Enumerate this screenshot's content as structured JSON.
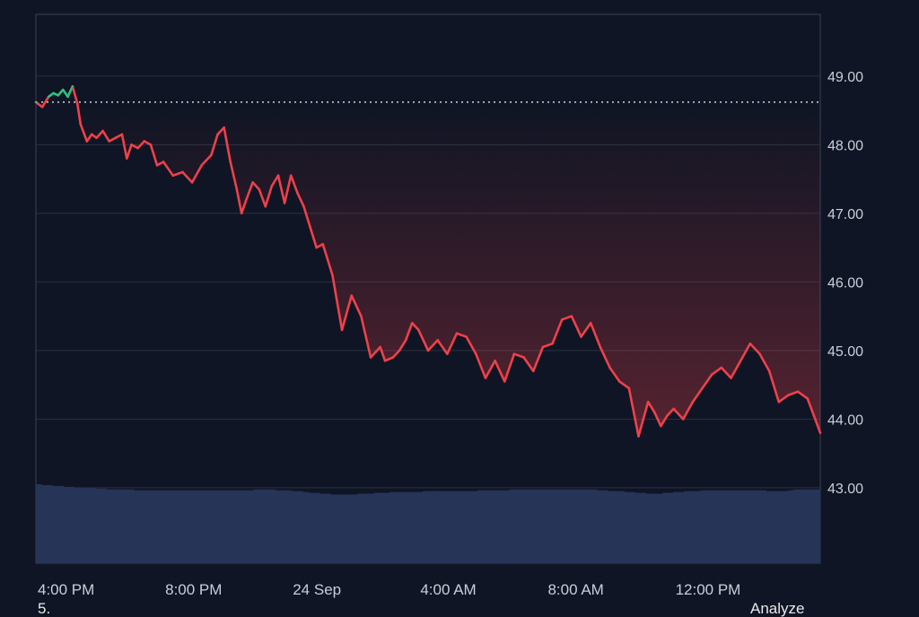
{
  "chart_data": {
    "type": "line",
    "title": "",
    "xlabel": "",
    "ylabel": "",
    "reference_price": 48.62,
    "ylim": [
      41.9,
      49.9
    ],
    "y_ticks": [
      "49.00",
      "48.00",
      "47.00",
      "46.00",
      "45.00",
      "44.00",
      "43.00"
    ],
    "x_ticks": [
      "4:00 PM",
      "8:00 PM",
      "24 Sep",
      "4:00 AM",
      "8:00 AM",
      "12:00 PM"
    ],
    "x_tick_hours": [
      0,
      4,
      8,
      12,
      16,
      20
    ],
    "x_range_hours": [
      0,
      24.6
    ],
    "grid": true,
    "colors": {
      "up": "#2ec27e",
      "down": "#f0404a",
      "volume": "#263458",
      "grid": "#2a3140",
      "reference": "#cfd3da"
    },
    "series": [
      {
        "x": [
          0,
          0.2,
          0.4,
          0.55,
          0.7,
          0.85,
          1.0,
          1.15,
          1.3,
          1.4,
          1.6,
          1.75,
          1.9,
          2.1,
          2.3,
          2.5,
          2.7,
          2.85,
          3.0,
          3.2,
          3.4,
          3.6,
          3.8,
          4.0,
          4.3,
          4.6,
          4.9,
          5.2,
          5.5,
          5.7,
          5.9,
          6.1,
          6.3,
          6.45,
          6.6,
          6.8,
          7.0,
          7.2,
          7.4,
          7.6,
          7.8,
          8.0,
          8.2,
          8.4,
          8.6,
          8.8,
          9.0,
          9.3,
          9.6,
          9.9,
          10.2,
          10.5,
          10.8,
          10.95,
          11.2,
          11.4,
          11.6,
          11.8,
          12.0,
          12.3,
          12.6,
          12.9,
          13.2,
          13.5,
          13.8,
          14.1,
          14.4,
          14.7,
          15.0,
          15.3,
          15.6,
          15.9,
          16.2,
          16.5,
          16.8,
          17.1,
          17.4,
          17.7,
          18.0,
          18.3,
          18.6,
          18.9,
          19.2,
          19.4,
          19.6,
          19.8,
          20.0,
          20.3,
          20.6,
          20.9,
          21.2,
          21.5,
          21.8,
          22.1,
          22.4,
          22.7,
          23.0,
          23.3,
          23.6,
          23.9,
          24.2,
          24.4,
          24.6
        ],
        "values": [
          48.62,
          48.55,
          48.7,
          48.75,
          48.72,
          48.8,
          48.7,
          48.85,
          48.6,
          48.3,
          48.05,
          48.15,
          48.1,
          48.2,
          48.05,
          48.1,
          48.15,
          47.8,
          48.0,
          47.95,
          48.05,
          48.0,
          47.7,
          47.75,
          47.55,
          47.6,
          47.45,
          47.7,
          47.85,
          48.15,
          48.25,
          47.75,
          47.35,
          47.0,
          47.2,
          47.45,
          47.35,
          47.1,
          47.4,
          47.55,
          47.15,
          47.55,
          47.3,
          47.1,
          46.8,
          46.5,
          46.55,
          46.1,
          45.3,
          45.8,
          45.5,
          44.9,
          45.05,
          44.85,
          44.9,
          45.0,
          45.15,
          45.4,
          45.3,
          45.0,
          45.15,
          44.95,
          45.25,
          45.2,
          44.95,
          44.6,
          44.85,
          44.55,
          44.95,
          44.9,
          44.7,
          45.05,
          45.1,
          45.45,
          45.5,
          45.2,
          45.4,
          45.05,
          44.75,
          44.55,
          44.45,
          43.75,
          44.25,
          44.1,
          43.9,
          44.05,
          44.15,
          44.0,
          44.25,
          44.45,
          44.65,
          44.75,
          44.6,
          44.85,
          45.1,
          44.95,
          44.7,
          44.25,
          44.35,
          44.4,
          44.3,
          44.05,
          43.8
        ]
      }
    ],
    "volume": [
      0.92,
      0.91,
      0.91,
      0.9,
      0.9,
      0.89,
      0.89,
      0.88,
      0.88,
      0.88,
      0.88,
      0.87,
      0.87,
      0.86,
      0.86,
      0.86,
      0.86,
      0.86,
      0.85,
      0.85,
      0.85,
      0.85,
      0.85,
      0.85,
      0.85,
      0.85,
      0.85,
      0.85,
      0.85,
      0.85,
      0.85,
      0.85,
      0.85,
      0.85,
      0.85,
      0.85,
      0.85,
      0.85,
      0.85,
      0.85,
      0.86,
      0.86,
      0.86,
      0.86,
      0.85,
      0.85,
      0.85,
      0.84,
      0.84,
      0.83,
      0.82,
      0.82,
      0.81,
      0.81,
      0.8,
      0.8,
      0.8,
      0.8,
      0.8,
      0.81,
      0.81,
      0.81,
      0.82,
      0.82,
      0.82,
      0.83,
      0.83,
      0.83,
      0.83,
      0.83,
      0.83,
      0.84,
      0.84,
      0.84,
      0.84,
      0.84,
      0.84,
      0.84,
      0.84,
      0.84,
      0.84,
      0.85,
      0.85,
      0.85,
      0.85,
      0.85,
      0.85,
      0.86,
      0.86,
      0.86,
      0.86,
      0.86,
      0.86,
      0.86,
      0.86,
      0.86,
      0.86,
      0.86,
      0.86,
      0.86,
      0.86,
      0.86,
      0.86,
      0.85,
      0.85,
      0.84,
      0.84,
      0.84,
      0.83,
      0.83,
      0.82,
      0.82,
      0.81,
      0.81,
      0.81,
      0.82,
      0.82,
      0.83,
      0.83,
      0.84,
      0.84,
      0.84,
      0.85,
      0.85,
      0.85,
      0.85,
      0.85,
      0.85,
      0.85,
      0.85,
      0.85,
      0.85,
      0.85,
      0.85,
      0.84,
      0.84,
      0.84,
      0.84,
      0.85,
      0.86,
      0.86,
      0.86,
      0.86,
      0.86
    ]
  },
  "footer": {
    "left_text": "5.",
    "right_text": "Analyze"
  }
}
